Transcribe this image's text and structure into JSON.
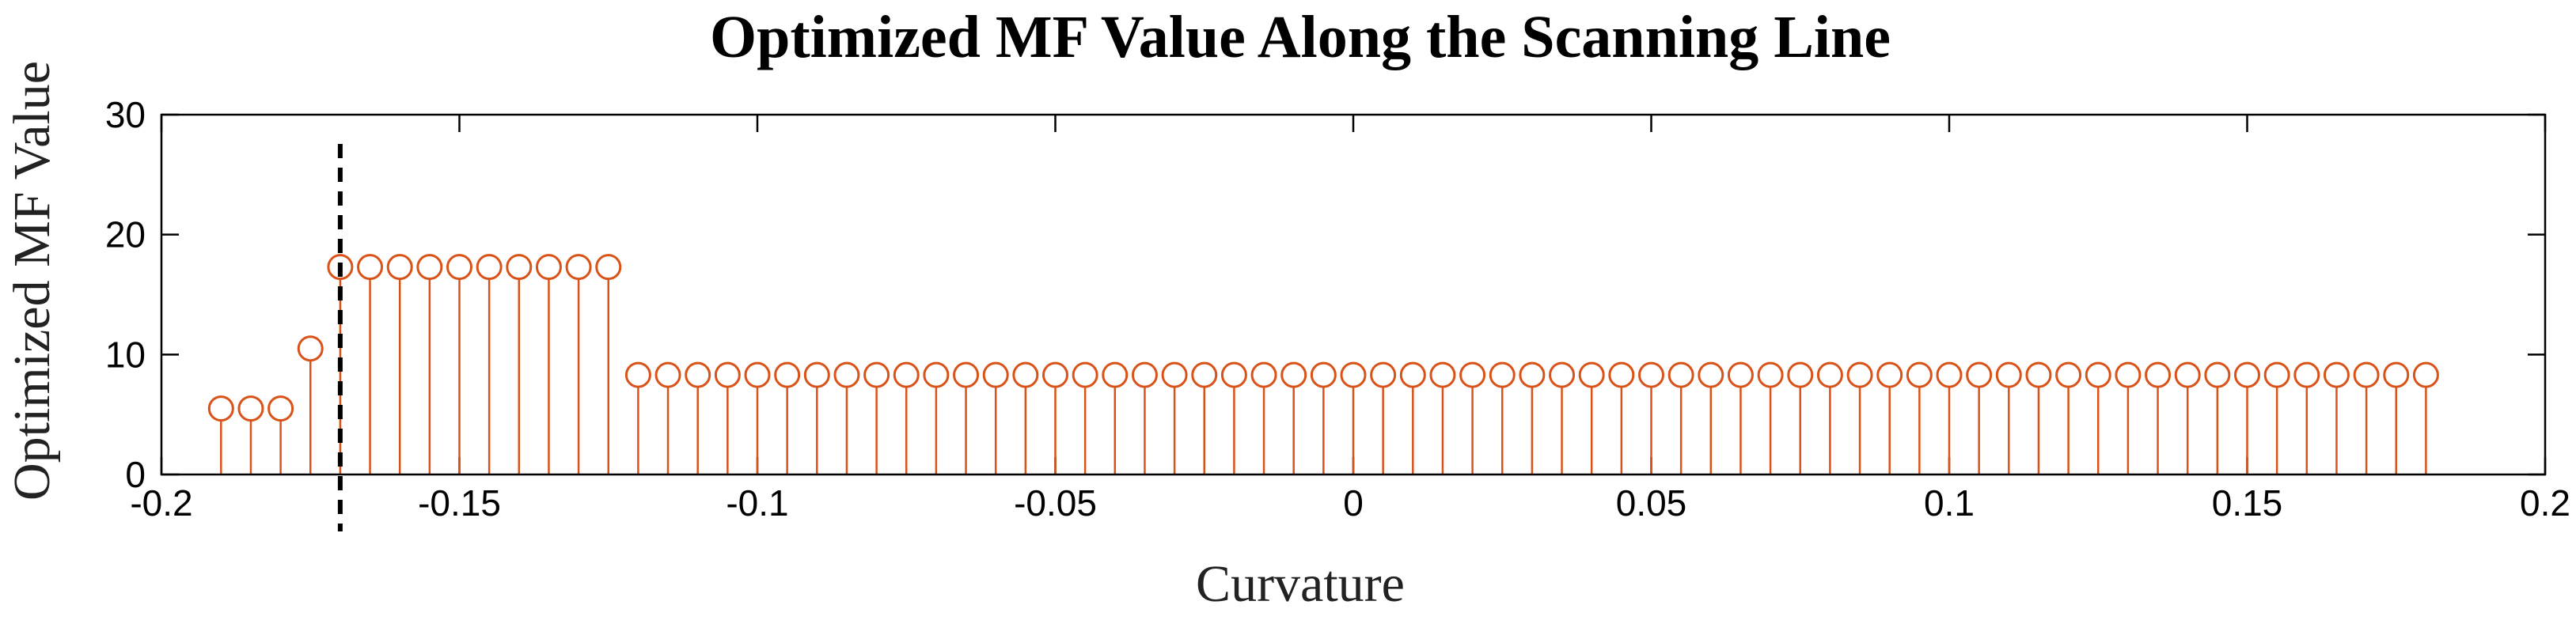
{
  "chart_data": {
    "type": "stem",
    "title": "Optimized MF Value Along the Scanning Line",
    "xlabel": "Curvature",
    "ylabel": "Optimized MF Value",
    "xlim": [
      -0.2,
      0.2
    ],
    "ylim": [
      0,
      30
    ],
    "xticks": [
      -0.2,
      -0.15,
      -0.1,
      -0.05,
      0,
      0.05,
      0.1,
      0.15,
      0.2
    ],
    "xtick_labels": [
      "-0.2",
      "-0.15",
      "-0.1",
      "-0.05",
      "0",
      "0.05",
      "0.1",
      "0.15",
      "0.2"
    ],
    "yticks": [
      0,
      10,
      20,
      30
    ],
    "ytick_labels": [
      "0",
      "10",
      "20",
      "30"
    ],
    "grid": false,
    "series_color": "#d95319",
    "reference_line": {
      "x": -0.17,
      "style": "dashed",
      "color": "#000000"
    },
    "x_start": -0.19,
    "x_step": 0.005,
    "values": [
      5.5,
      5.5,
      5.5,
      10.5,
      17.3,
      17.3,
      17.3,
      17.3,
      17.3,
      17.3,
      17.3,
      17.3,
      17.3,
      17.3,
      8.3,
      8.3,
      8.3,
      8.3,
      8.3,
      8.3,
      8.3,
      8.3,
      8.3,
      8.3,
      8.3,
      8.3,
      8.3,
      8.3,
      8.3,
      8.3,
      8.3,
      8.3,
      8.3,
      8.3,
      8.3,
      8.3,
      8.3,
      8.3,
      8.3,
      8.3,
      8.3,
      8.3,
      8.3,
      8.3,
      8.3,
      8.3,
      8.3,
      8.3,
      8.3,
      8.3,
      8.3,
      8.3,
      8.3,
      8.3,
      8.3,
      8.3,
      8.3,
      8.3,
      8.3,
      8.3,
      8.3,
      8.3,
      8.3,
      8.3,
      8.3,
      8.3,
      8.3,
      8.3,
      8.3,
      8.3,
      8.3,
      8.3,
      8.3,
      8.3,
      8.3
    ]
  }
}
